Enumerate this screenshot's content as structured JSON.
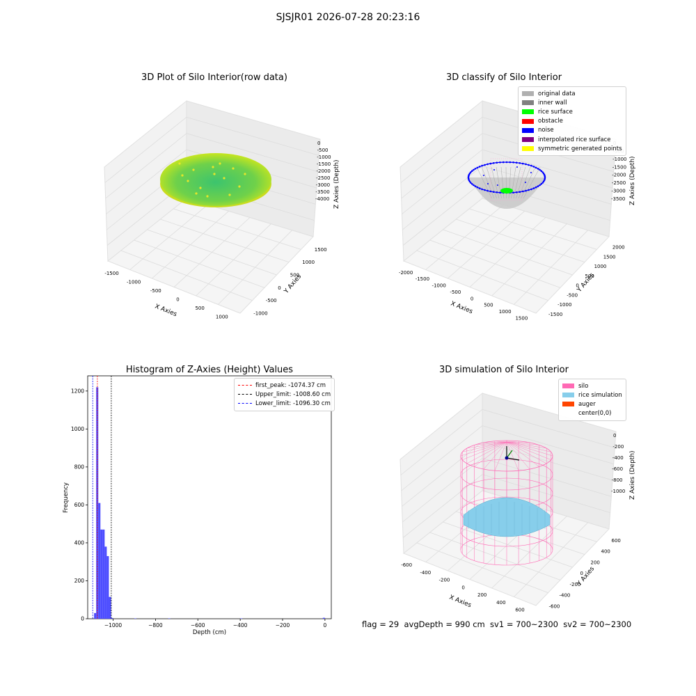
{
  "page": {
    "title": "SJSJR01 2026-07-28 20:23:16",
    "footer": "flag = 29  avgDepth = 990 cm  sv1 = 700~2300  sv2 = 700~2300"
  },
  "colors": {
    "hist_bar": "#4d4dff",
    "first_peak": "#ff0000",
    "upper_limit": "#000000",
    "lower_limit": "#0000ff",
    "silo": "#ff69b4",
    "rice": "#87ceeb",
    "surface_green": "#3cc46e",
    "surface_yellow": "#c8e61e"
  },
  "chart_data": [
    {
      "type": "scatter",
      "title": "3D Plot of Silo Interior(row data)",
      "xlabel": "X Axies",
      "ylabel": "Y Axies",
      "zlabel": "Z Axies (Depth)",
      "xticks": [
        "-1500",
        "-1000",
        "-500",
        "0",
        "500",
        "1000"
      ],
      "yticks": [
        "-1000",
        "-500",
        "0",
        "500",
        "1000",
        "1500"
      ],
      "zticks": [
        "0",
        "-500",
        "-1000",
        "-1500",
        "-2000",
        "-2500",
        "-3000",
        "-3500",
        "-4000"
      ],
      "colormap": "viridis-like (green center, yellow rim)"
    },
    {
      "type": "scatter",
      "title": "3D classify of Silo Interior",
      "xlabel": "X Axies",
      "ylabel": "Y Axies",
      "zlabel": "Z Axies (Depth)",
      "xticks": [
        "-2000",
        "-1500",
        "-1000",
        "-500",
        "0",
        "500",
        "1000",
        "1500"
      ],
      "yticks": [
        "-1500",
        "-1000",
        "-500",
        "0",
        "500",
        "1000",
        "1500",
        "2000"
      ],
      "zticks": [
        "0",
        "-500",
        "-1000",
        "-1500",
        "-2000",
        "-2500",
        "-3000",
        "-3500"
      ],
      "legend_position": "top-right",
      "legend": [
        {
          "label": "original data",
          "color": "#b0b0b0"
        },
        {
          "label": "inner wall",
          "color": "#808080"
        },
        {
          "label": "rice surface",
          "color": "#00ff00"
        },
        {
          "label": "obstacle",
          "color": "#ff0000"
        },
        {
          "label": "noise",
          "color": "#0000ff"
        },
        {
          "label": "interpolated rice surface",
          "color": "#800080"
        },
        {
          "label": "symmetric generated points",
          "color": "#ffff00"
        }
      ]
    },
    {
      "type": "bar",
      "title": "Histogram of Z-Axies (Height) Values",
      "xlabel": "Depth (cm)",
      "ylabel": "Frequency",
      "xlim": [
        -1120,
        30
      ],
      "ylim": [
        0,
        1280
      ],
      "xticks": [
        -1000,
        -800,
        -600,
        -400,
        -200,
        0
      ],
      "yticks": [
        0,
        200,
        400,
        600,
        800,
        1000,
        1200
      ],
      "bin_width": 10,
      "bins": [
        {
          "x": -1090,
          "count": 30
        },
        {
          "x": -1080,
          "count": 1220
        },
        {
          "x": -1070,
          "count": 610
        },
        {
          "x": -1060,
          "count": 470
        },
        {
          "x": -1050,
          "count": 470
        },
        {
          "x": -1040,
          "count": 380
        },
        {
          "x": -1030,
          "count": 330
        },
        {
          "x": -1020,
          "count": 115
        },
        {
          "x": -1010,
          "count": 4
        },
        {
          "x": -900,
          "count": 2
        },
        {
          "x": -740,
          "count": 2
        },
        {
          "x": -400,
          "count": 2
        },
        {
          "x": -10,
          "count": 5
        }
      ],
      "legend_position": "top-right",
      "vlines": [
        {
          "label": "first_peak: -1074.37 cm",
          "x": -1074.37,
          "color": "#ff0000"
        },
        {
          "label": "Upper_limit: -1008.60 cm",
          "x": -1008.6,
          "color": "#000000"
        },
        {
          "label": "Lower_limit: -1096.30 cm",
          "x": -1096.3,
          "color": "#0000ff"
        }
      ]
    },
    {
      "type": "scatter",
      "title": "3D simulation of Silo Interior",
      "xlabel": "X Axies",
      "ylabel": "Y Axies",
      "zlabel": "Z Axies (Depth)",
      "xticks": [
        "-600",
        "-400",
        "-200",
        "0",
        "200",
        "400",
        "600"
      ],
      "yticks": [
        "-600",
        "-400",
        "-200",
        "0",
        "200",
        "400",
        "600"
      ],
      "zticks": [
        "0",
        "-200",
        "-400",
        "-600",
        "-800",
        "-1000"
      ],
      "legend_position": "top-right",
      "legend": [
        {
          "label": "silo",
          "color": "#ff69b4"
        },
        {
          "label": "rice simulation",
          "color": "#87ceeb"
        },
        {
          "label": "auger",
          "color": "#ff4500"
        },
        {
          "label": "center(0,0)",
          "color": "#ffffff"
        }
      ]
    }
  ]
}
